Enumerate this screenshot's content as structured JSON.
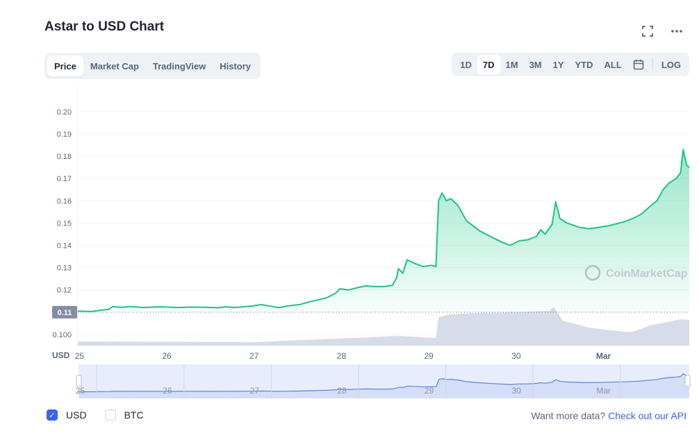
{
  "title": "Astar to USD Chart",
  "tabs": [
    "Price",
    "Market Cap",
    "TradingView",
    "History"
  ],
  "active_tab": "Price",
  "ranges": [
    "1D",
    "7D",
    "1M",
    "3M",
    "1Y",
    "YTD",
    "ALL"
  ],
  "active_range": "7D",
  "log_label": "LOG",
  "icons": {
    "fullscreen": "fullscreen-icon",
    "more": "more-icon",
    "calendar": "calendar-icon"
  },
  "watermark": "CoinMarketCap",
  "currency_unit": "USD",
  "current_price_label": "0.11",
  "footer": {
    "usd_label": "USD",
    "btc_label": "BTC",
    "usd_checked": true,
    "btc_checked": false,
    "api_text": "Want more data?",
    "api_link": "Check out our API"
  },
  "colors": {
    "line": "#16c784",
    "volume": "#cfd6e4",
    "accent": "#3861fb"
  },
  "chart_data": {
    "type": "line",
    "xlabel": "",
    "ylabel": "",
    "y_ticks": [
      "0.20",
      "0.19",
      "0.18",
      "0.17",
      "0.16",
      "0.15",
      "0.14",
      "0.13",
      "0.12",
      "0.100"
    ],
    "x_ticks": [
      "25",
      "26",
      "27",
      "28",
      "29",
      "30",
      "Mar"
    ],
    "ylim": [
      0.095,
      0.2115
    ],
    "xlim": [
      24.95,
      31.95
    ],
    "grid": true,
    "series": [
      {
        "values": [
          [
            24.95,
            0.1105
          ],
          [
            25.1,
            0.1103
          ],
          [
            25.2,
            0.1108
          ],
          [
            25.3,
            0.1112
          ],
          [
            25.35,
            0.1125
          ],
          [
            25.45,
            0.1122
          ],
          [
            25.55,
            0.1125
          ],
          [
            25.7,
            0.1121
          ],
          [
            25.9,
            0.1124
          ],
          [
            26.1,
            0.1121
          ],
          [
            26.25,
            0.1123
          ],
          [
            26.4,
            0.1122
          ],
          [
            26.55,
            0.112
          ],
          [
            26.65,
            0.1124
          ],
          [
            26.75,
            0.1121
          ],
          [
            26.95,
            0.1128
          ],
          [
            27.05,
            0.1134
          ],
          [
            27.25,
            0.112
          ],
          [
            27.35,
            0.1128
          ],
          [
            27.5,
            0.1135
          ],
          [
            27.6,
            0.1147
          ],
          [
            27.7,
            0.1155
          ],
          [
            27.8,
            0.1165
          ],
          [
            27.85,
            0.1175
          ],
          [
            27.9,
            0.1185
          ],
          [
            27.95,
            0.1205
          ],
          [
            28.05,
            0.12
          ],
          [
            28.15,
            0.121
          ],
          [
            28.25,
            0.1218
          ],
          [
            28.35,
            0.1215
          ],
          [
            28.45,
            0.1215
          ],
          [
            28.55,
            0.122
          ],
          [
            28.6,
            0.1255
          ],
          [
            28.62,
            0.1295
          ],
          [
            28.67,
            0.1275
          ],
          [
            28.72,
            0.1335
          ],
          [
            28.8,
            0.132
          ],
          [
            28.9,
            0.1305
          ],
          [
            29.0,
            0.131
          ],
          [
            29.05,
            0.1305
          ],
          [
            29.08,
            0.16
          ],
          [
            29.12,
            0.1635
          ],
          [
            29.17,
            0.16
          ],
          [
            29.22,
            0.161
          ],
          [
            29.3,
            0.158
          ],
          [
            29.4,
            0.151
          ],
          [
            29.55,
            0.1465
          ],
          [
            29.7,
            0.1435
          ],
          [
            29.8,
            0.1415
          ],
          [
            29.9,
            0.14
          ],
          [
            30.0,
            0.142
          ],
          [
            30.1,
            0.1425
          ],
          [
            30.2,
            0.144
          ],
          [
            30.25,
            0.147
          ],
          [
            30.3,
            0.145
          ],
          [
            30.38,
            0.1495
          ],
          [
            30.42,
            0.1595
          ],
          [
            30.47,
            0.152
          ],
          [
            30.55,
            0.15
          ],
          [
            30.7,
            0.148
          ],
          [
            30.8,
            0.1475
          ],
          [
            30.9,
            0.148
          ],
          [
            31.05,
            0.149
          ],
          [
            31.2,
            0.1505
          ],
          [
            31.3,
            0.152
          ],
          [
            31.4,
            0.154
          ],
          [
            31.5,
            0.1575
          ],
          [
            31.58,
            0.16
          ],
          [
            31.65,
            0.165
          ],
          [
            31.72,
            0.168
          ],
          [
            31.8,
            0.17
          ],
          [
            31.85,
            0.1725
          ],
          [
            31.88,
            0.183
          ],
          [
            31.92,
            0.176
          ],
          [
            31.95,
            0.175
          ]
        ]
      }
    ]
  }
}
